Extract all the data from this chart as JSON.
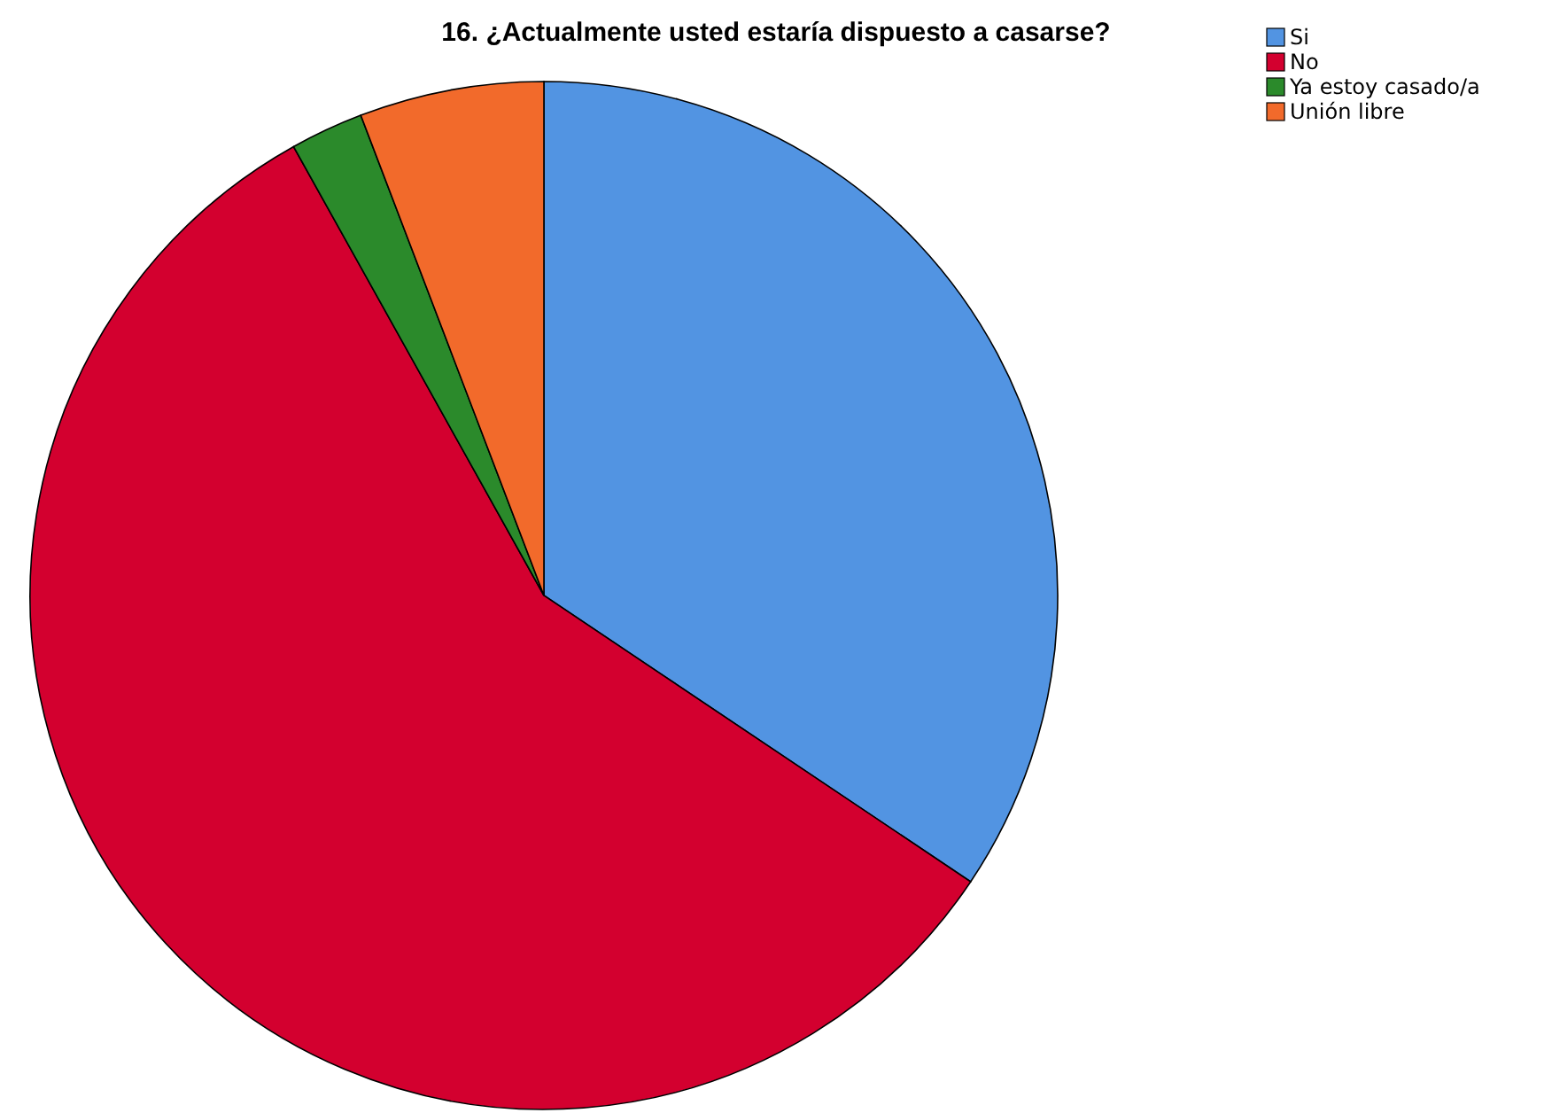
{
  "chart_data": {
    "type": "pie",
    "title": "16. ¿Actualmente usted estaría dispuesto a casarse?",
    "categories": [
      "Si",
      "No",
      "Ya estoy casado/a",
      "Unión libre"
    ],
    "values": [
      34.4,
      57.5,
      2.3,
      5.8
    ],
    "colors": [
      "#5294e2",
      "#d3002f",
      "#2b8a2b",
      "#f26a2b"
    ],
    "legend": "top right"
  }
}
